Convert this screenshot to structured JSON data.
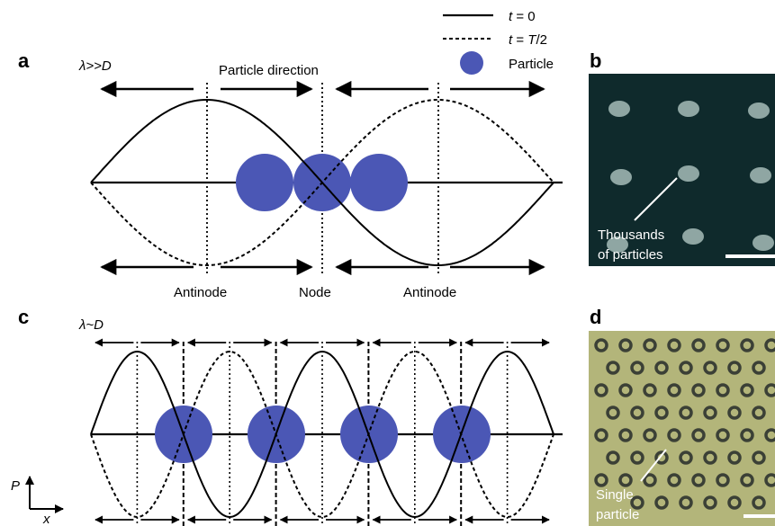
{
  "legend": {
    "solid": {
      "label_var": "t",
      "label_rest": " = 0"
    },
    "dashed": {
      "label_var": "t",
      "label_rest": " = ",
      "label_var2": "T",
      "label_tail": "/2"
    },
    "particle": {
      "label": "Particle"
    }
  },
  "panel_a": {
    "label": "a",
    "ratio": "λ>>D",
    "direction_label": "Particle direction",
    "bottom_labels": [
      "Antinode",
      "Node",
      "Antinode"
    ]
  },
  "panel_b": {
    "label": "b",
    "annotation_line1": "Thousands",
    "annotation_line2": "of particles"
  },
  "panel_c": {
    "label": "c",
    "ratio": "λ~D",
    "axis_y": "P",
    "axis_x": "x"
  },
  "panel_d": {
    "label": "d",
    "annotation_line1": "Single",
    "annotation_line2": "particle"
  },
  "colors": {
    "particle": "#4b57b5",
    "photo_b_bg": "#0f2a2c",
    "photo_b_particle": "#8fa6a3",
    "photo_d_bg": "#b3b57a",
    "photo_d_particle": "#3b4036"
  }
}
